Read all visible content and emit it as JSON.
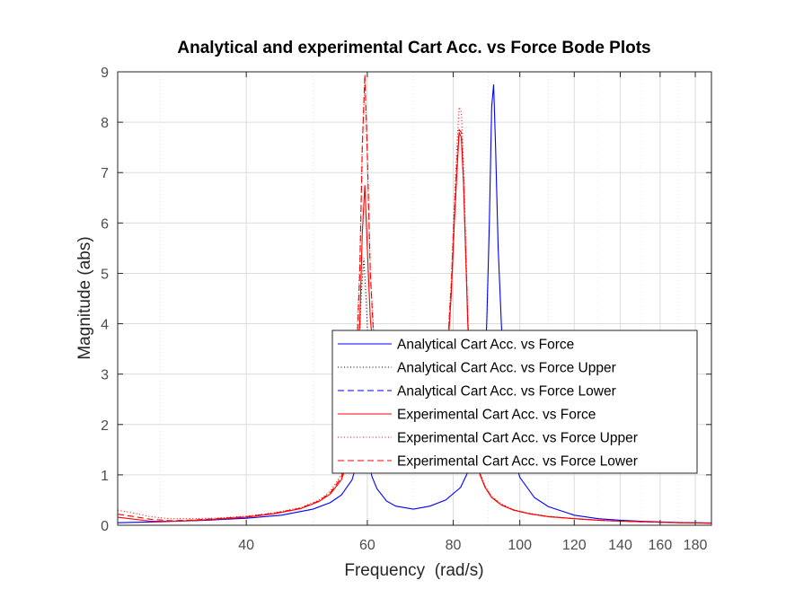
{
  "chart_data": {
    "type": "line",
    "title": "Analytical and experimental Cart Acc. vs Force Bode Plots",
    "xlabel": "Frequency  (rad/s)",
    "ylabel": "Magnitude (abs)",
    "x_scale": "log",
    "xlim": [
      26,
      190
    ],
    "ylim": [
      0,
      9
    ],
    "grid": true,
    "minor_grid": true,
    "legend_position": "lower-right",
    "x_ticks": [
      40,
      60,
      80,
      100,
      120,
      140,
      160,
      180
    ],
    "y_ticks": [
      0,
      1,
      2,
      3,
      4,
      5,
      6,
      7,
      8,
      9
    ],
    "series": [
      {
        "name": "Analytical Cart Acc. vs Force",
        "color": "#0000ff",
        "style": "solid",
        "x": [
          26,
          30,
          35,
          40,
          45,
          50,
          53,
          55,
          57,
          58,
          59,
          60,
          61,
          62,
          64,
          66,
          70,
          74,
          78,
          82,
          85,
          87,
          88.5,
          89.5,
          90.3,
          91,
          91.6,
          92.2,
          93,
          94,
          95.5,
          97,
          100,
          105,
          110,
          120,
          130,
          140,
          150,
          160,
          170,
          180,
          190
        ],
        "y": [
          0.05,
          0.07,
          0.1,
          0.14,
          0.2,
          0.32,
          0.45,
          0.6,
          0.9,
          1.25,
          1.7,
          1.3,
          0.95,
          0.72,
          0.48,
          0.38,
          0.32,
          0.38,
          0.5,
          0.75,
          1.2,
          1.8,
          2.6,
          4.0,
          6.0,
          8.3,
          8.75,
          7.5,
          5.5,
          4.0,
          2.4,
          1.6,
          0.95,
          0.55,
          0.37,
          0.2,
          0.13,
          0.1,
          0.08,
          0.065,
          0.055,
          0.05,
          0.045
        ]
      },
      {
        "name": "Analytical Cart Acc. vs Force Upper",
        "color": "#000000",
        "style": "dotted",
        "x": [
          57.5,
          58.2,
          58.8,
          59.3,
          59.8,
          60.4,
          61.2
        ],
        "y": [
          1.8,
          3.0,
          4.6,
          5.3,
          4.4,
          3.0,
          1.8
        ]
      },
      {
        "name": "Analytical Cart Acc. vs Force Lower",
        "color": "#0000ff",
        "style": "dashed",
        "x": [],
        "y": []
      },
      {
        "name": "Experimental Cart Acc. vs Force",
        "color": "#ff0000",
        "style": "solid",
        "x": [
          26,
          27.5,
          29,
          31,
          33,
          36,
          40,
          44,
          48,
          51,
          53,
          55,
          56,
          57,
          57.8,
          58.5,
          59,
          59.5,
          60,
          60.6,
          61.3,
          62,
          63,
          64,
          65,
          66,
          67,
          68,
          70,
          72,
          74,
          76,
          77.5,
          78.5,
          79.5,
          80.3,
          81,
          81.6,
          82.2,
          82.8,
          83.4,
          84,
          84.7,
          85.5,
          86.5,
          87.5,
          89,
          91,
          94,
          98,
          103,
          110,
          120,
          130,
          140,
          150,
          160,
          170,
          180,
          190
        ],
        "y": [
          0.16,
          0.12,
          0.08,
          0.08,
          0.09,
          0.12,
          0.16,
          0.23,
          0.33,
          0.47,
          0.62,
          0.9,
          1.2,
          1.8,
          2.7,
          4.0,
          5.8,
          6.75,
          5.5,
          4.1,
          3.4,
          2.8,
          2.1,
          1.7,
          1.4,
          1.2,
          1.1,
          1.05,
          1.05,
          1.15,
          1.4,
          1.9,
          2.6,
          3.4,
          4.6,
          6.0,
          7.0,
          7.8,
          7.7,
          6.8,
          5.4,
          4.0,
          2.8,
          1.9,
          1.35,
          1.0,
          0.75,
          0.55,
          0.4,
          0.3,
          0.23,
          0.17,
          0.13,
          0.1,
          0.08,
          0.07,
          0.06,
          0.05,
          0.045,
          0.04
        ]
      },
      {
        "name": "Experimental Cart Acc. vs Force Upper",
        "color": "#ff0000",
        "style": "dotted",
        "x": [
          26,
          27.5,
          29,
          31,
          33,
          36,
          40,
          44,
          48,
          51,
          53,
          55,
          56,
          57,
          57.8,
          58.5,
          59,
          59.5,
          60,
          60.6,
          61.3,
          62,
          63,
          64,
          65,
          66,
          68,
          70,
          72,
          74,
          76,
          77.5,
          78.5,
          79.5,
          80.3,
          81,
          81.6,
          82.2,
          82.8,
          83.4,
          84,
          84.7,
          85.5,
          86.5,
          87.5,
          89,
          91,
          94,
          98,
          103,
          110,
          120,
          130,
          140,
          150,
          160,
          170,
          180,
          190
        ],
        "y": [
          0.3,
          0.24,
          0.17,
          0.13,
          0.13,
          0.14,
          0.18,
          0.25,
          0.35,
          0.5,
          0.67,
          1.0,
          1.35,
          2.1,
          3.3,
          5.2,
          7.6,
          8.8,
          7.3,
          5.1,
          3.8,
          3.0,
          2.25,
          1.8,
          1.5,
          1.3,
          1.12,
          1.1,
          1.2,
          1.45,
          2.0,
          2.75,
          3.6,
          4.9,
          6.4,
          7.5,
          8.3,
          8.2,
          7.2,
          5.7,
          4.2,
          2.95,
          2.0,
          1.4,
          1.05,
          0.78,
          0.57,
          0.42,
          0.31,
          0.24,
          0.18,
          0.135,
          0.105,
          0.085,
          0.072,
          0.062,
          0.053,
          0.047,
          0.042
        ]
      },
      {
        "name": "Experimental Cart Acc. vs Force Lower",
        "color": "#ff0000",
        "style": "dashed",
        "x": [
          26,
          27.5,
          29,
          31,
          33,
          36,
          40,
          44,
          48,
          51,
          53,
          55,
          56,
          57,
          57.8,
          58.5,
          59,
          59.5,
          60,
          60.6,
          61.3,
          62,
          63,
          64,
          65,
          66,
          68,
          70,
          72,
          74,
          76,
          77.5,
          78.5,
          79.5,
          80.3,
          81,
          81.6,
          82.2,
          82.8,
          83.4,
          84,
          84.7,
          85.5,
          86.5,
          87.5,
          89,
          91,
          94,
          98,
          103,
          110,
          120,
          130,
          140,
          150,
          160,
          170,
          180,
          190
        ],
        "y": [
          0.22,
          0.17,
          0.12,
          0.09,
          0.1,
          0.13,
          0.17,
          0.24,
          0.34,
          0.48,
          0.64,
          0.95,
          1.3,
          2.0,
          3.1,
          5.0,
          7.5,
          8.95,
          7.4,
          5.0,
          3.7,
          2.9,
          2.2,
          1.75,
          1.45,
          1.25,
          1.08,
          1.07,
          1.17,
          1.42,
          1.95,
          2.7,
          3.5,
          4.8,
          6.2,
          7.2,
          7.85,
          7.8,
          6.9,
          5.5,
          4.1,
          2.9,
          1.95,
          1.38,
          1.02,
          0.76,
          0.56,
          0.41,
          0.3,
          0.23,
          0.17,
          0.13,
          0.1,
          0.08,
          0.068,
          0.058,
          0.05,
          0.045,
          0.04
        ]
      }
    ]
  }
}
